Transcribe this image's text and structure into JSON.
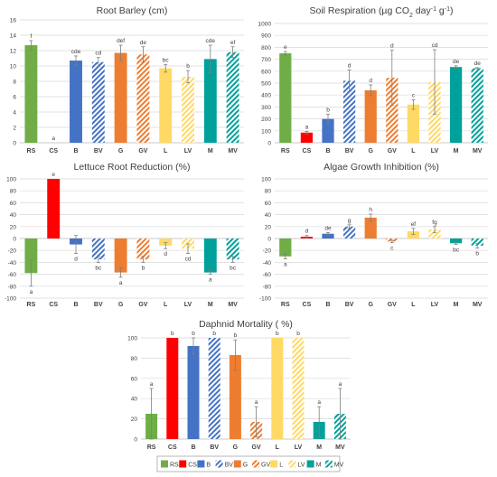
{
  "categories": [
    "RS",
    "CS",
    "B",
    "BV",
    "G",
    "GV",
    "L",
    "LV",
    "M",
    "MV"
  ],
  "styles": {
    "colors": [
      "#70ad47",
      "#ff0000",
      "#4472c4",
      "#4472c4",
      "#ed7d31",
      "#ed7d31",
      "#ffd966",
      "#ffd966",
      "#00a19a",
      "#00a19a"
    ],
    "hatched": [
      false,
      false,
      false,
      true,
      false,
      true,
      false,
      true,
      false,
      true
    ]
  },
  "chart_data": [
    {
      "type": "bar",
      "title": "Root Barley (cm)",
      "title_parts": null,
      "categories": [
        "RS",
        "CS",
        "B",
        "BV",
        "G",
        "GV",
        "L",
        "LV",
        "M",
        "MV"
      ],
      "values": [
        12.7,
        0,
        10.7,
        10.5,
        11.7,
        11.5,
        9.7,
        8.6,
        10.9,
        11.8
      ],
      "errors": [
        0.6,
        0,
        0.6,
        0.6,
        1.0,
        1.0,
        0.5,
        0.8,
        1.8,
        0.7
      ],
      "letters": [
        "f",
        "a",
        "cde",
        "cd",
        "def",
        "de",
        "bc",
        "b",
        "cde",
        "ef"
      ],
      "ylim": [
        0,
        16
      ],
      "yticks": [
        0,
        2,
        4,
        6,
        8,
        10,
        12,
        14,
        16
      ],
      "grid": true
    },
    {
      "type": "bar",
      "title": "Soil Respiration (µg CO2 day-1 g-1)",
      "title_parts": [
        "Soil Respiration (µg CO",
        "2",
        " day",
        "-1",
        " g",
        "-1",
        ")"
      ],
      "categories": [
        "RS",
        "CS",
        "B",
        "BV",
        "G",
        "GV",
        "L",
        "LV",
        "M",
        "MV"
      ],
      "values": [
        750,
        85,
        200,
        520,
        440,
        545,
        320,
        510,
        635,
        625
      ],
      "errors": [
        15,
        10,
        40,
        90,
        45,
        230,
        40,
        270,
        10,
        5
      ],
      "letters": [
        "e",
        "a",
        "b",
        "d",
        "d",
        "d",
        "c",
        "cd",
        "de",
        "de"
      ],
      "ylim": [
        0,
        1000
      ],
      "yticks": [
        0,
        100,
        200,
        300,
        400,
        500,
        600,
        700,
        800,
        900,
        1000
      ],
      "grid": true
    },
    {
      "type": "bar",
      "title": "Lettuce Root Reduction (%)",
      "title_parts": null,
      "categories": [
        "RS",
        "CS",
        "B",
        "BV",
        "G",
        "GV",
        "L",
        "LV",
        "M",
        "MV"
      ],
      "values": [
        -58,
        100,
        -10,
        -35,
        -57,
        -35,
        -12,
        -17,
        -57,
        -35
      ],
      "errors": [
        22,
        0,
        15,
        5,
        8,
        5,
        5,
        8,
        3,
        5
      ],
      "letters": [
        "a",
        "e",
        "d",
        "bc",
        "a",
        "b",
        "d",
        "cd",
        "a",
        "bc"
      ],
      "ylim": [
        -100,
        100
      ],
      "yticks": [
        -100,
        -80,
        -60,
        -40,
        -20,
        0,
        20,
        40,
        60,
        80,
        100
      ],
      "grid": true
    },
    {
      "type": "bar",
      "title": "Algae Growth Inhibition (%)",
      "title_parts": null,
      "categories": [
        "RS",
        "CS",
        "B",
        "BV",
        "G",
        "GV",
        "L",
        "LV",
        "M",
        "MV"
      ],
      "values": [
        -30,
        3,
        8,
        20,
        35,
        -5,
        12,
        15,
        -8,
        -12
      ],
      "errors": [
        4,
        2,
        2,
        3,
        6,
        2,
        5,
        5,
        2,
        4
      ],
      "letters": [
        "a",
        "d",
        "de",
        "g",
        "h",
        "c",
        "ef",
        "fg",
        "bc",
        "b"
      ],
      "ylim": [
        -100,
        100
      ],
      "yticks": [
        -100,
        -80,
        -60,
        -40,
        -20,
        0,
        20,
        40,
        60,
        80,
        100
      ],
      "grid": true
    },
    {
      "type": "bar",
      "title": "Daphnid Mortality ( %)",
      "title_parts": null,
      "categories": [
        "RS",
        "CS",
        "B",
        "BV",
        "G",
        "GV",
        "L",
        "LV",
        "M",
        "MV"
      ],
      "values": [
        25,
        100,
        92,
        100,
        83,
        17,
        100,
        100,
        17,
        25
      ],
      "errors": [
        25,
        0,
        8,
        0,
        15,
        15,
        0,
        0,
        15,
        25
      ],
      "letters": [
        "a",
        "b",
        "b",
        "b",
        "b",
        "a",
        "b",
        "b",
        "a",
        "a"
      ],
      "ylim": [
        0,
        100
      ],
      "yticks": [
        0,
        20,
        40,
        60,
        80,
        100
      ],
      "grid": true
    }
  ],
  "legend": [
    "RS",
    "CS",
    "B",
    "BV",
    "G",
    "GV",
    "L",
    "LV",
    "M",
    "MV"
  ]
}
